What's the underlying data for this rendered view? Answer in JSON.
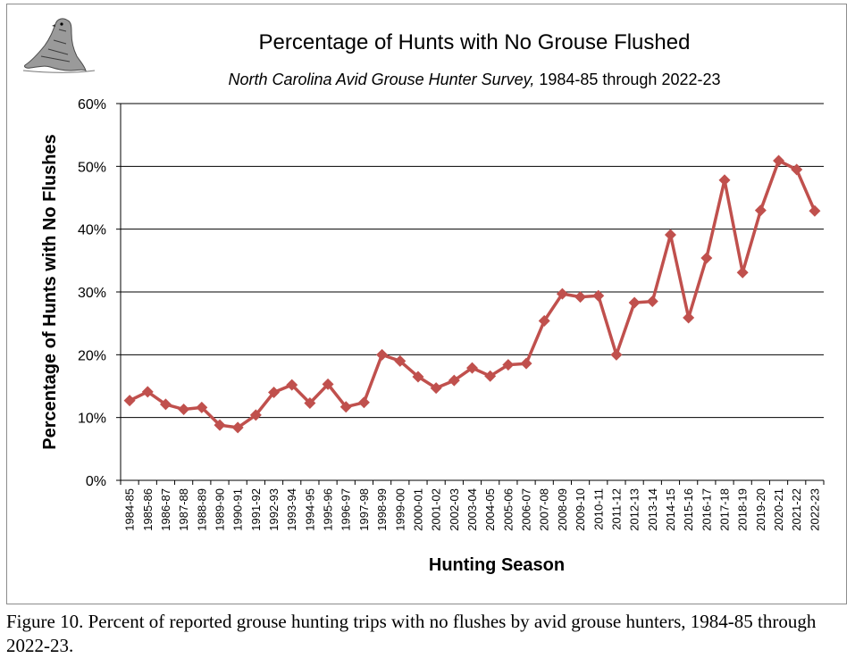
{
  "caption": "Figure 10.  Percent of reported grouse hunting trips with no flushes by avid grouse hunters, 1984-85 through 2022-23.",
  "colors": {
    "series": "#c0504d",
    "gridline": "#000000",
    "logo": "#6b6b6b"
  },
  "icons": {
    "logo": "grouse-illustration-icon"
  },
  "chart_data": {
    "type": "line",
    "title": "Percentage of Hunts with No Grouse Flushed",
    "subtitle_prefix": "North Carolina Avid Grouse Hunter Survey,",
    "subtitle_suffix": " 1984-85 through 2022-23",
    "xlabel": "Hunting Season",
    "ylabel": "Percentage of Hunts with No Flushes",
    "ylim": [
      0,
      60
    ],
    "yticks": [
      "0%",
      "10%",
      "20%",
      "30%",
      "40%",
      "50%",
      "60%"
    ],
    "grid": "horizontal",
    "legend": "none",
    "categories": [
      "1984-85",
      "1985-86",
      "1986-87",
      "1987-88",
      "1988-89",
      "1989-90",
      "1990-91",
      "1991-92",
      "1992-93",
      "1993-94",
      "1994-95",
      "1995-96",
      "1996-97",
      "1997-98",
      "1998-99",
      "1999-00",
      "2000-01",
      "2001-02",
      "2002-03",
      "2003-04",
      "2004-05",
      "2005-06",
      "2006-07",
      "2007-08",
      "2008-09",
      "2009-10",
      "2010-11",
      "2011-12",
      "2012-13",
      "2013-14",
      "2014-15",
      "2015-16",
      "2016-17",
      "2017-18",
      "2018-19",
      "2019-20",
      "2020-21",
      "2021-22",
      "2022-23"
    ],
    "values": [
      12.7,
      14.1,
      12.1,
      11.3,
      11.6,
      8.8,
      8.4,
      10.4,
      14.0,
      15.2,
      12.3,
      15.3,
      11.7,
      12.4,
      20.0,
      19.0,
      16.5,
      14.7,
      15.9,
      17.9,
      16.6,
      18.4,
      18.6,
      25.4,
      29.7,
      29.2,
      29.4,
      20.0,
      28.3,
      28.5,
      39.1,
      25.9,
      35.4,
      47.8,
      33.1,
      43.0,
      50.9,
      49.5,
      42.9
    ]
  }
}
